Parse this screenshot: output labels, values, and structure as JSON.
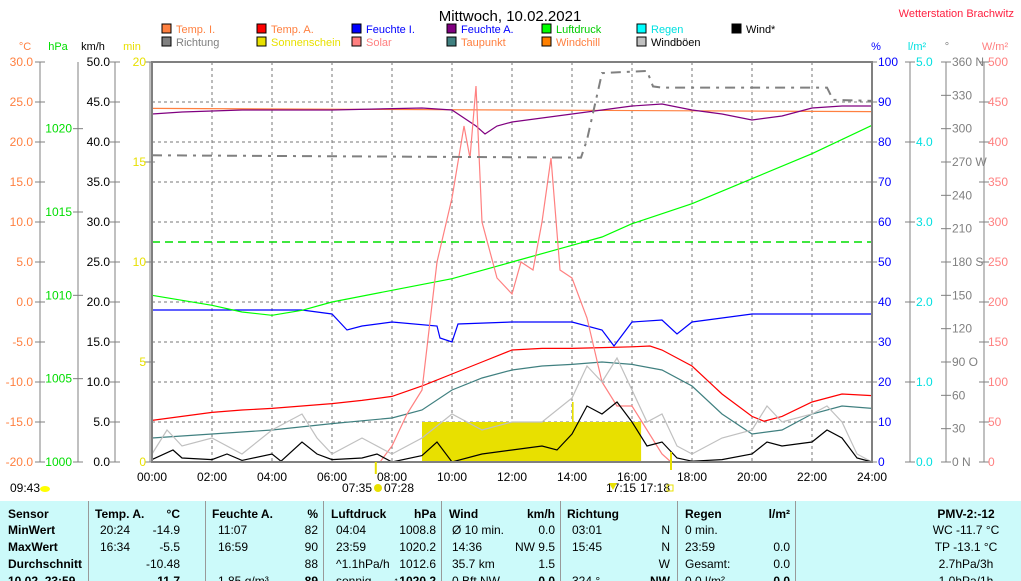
{
  "header": {
    "title": "Mittwoch, 10.02.2021",
    "station": "Wetterstation Brachwitz"
  },
  "legend": [
    {
      "label": "Temp. I.",
      "color": "#ff8040",
      "text_color": "#ff8040"
    },
    {
      "label": "Temp. A.",
      "color": "#ff0000",
      "text_color": "#ff8040"
    },
    {
      "label": "Feuchte I.",
      "color": "#0000ff",
      "text_color": "#0000ff"
    },
    {
      "label": "Feuchte A.",
      "color": "#800080",
      "text_color": "#0000ff"
    },
    {
      "label": "Luftdruck",
      "color": "#00ff00",
      "text_color": "#00cc00"
    },
    {
      "label": "Regen",
      "color": "#00ffff",
      "text_color": "#00e0e0"
    },
    {
      "label": "Wind*",
      "color": "#000000",
      "text_color": "#000000"
    },
    {
      "label": "Richtung",
      "color": "#808080",
      "text_color": "#808080"
    },
    {
      "label": "Sonnenschein",
      "color": "#e8e000",
      "text_color": "#e8e000"
    },
    {
      "label": "Solar",
      "color": "#ff8080",
      "text_color": "#ff8080"
    },
    {
      "label": "Taupunkt",
      "color": "#408080",
      "text_color": "#ff8040"
    },
    {
      "label": "Windchill",
      "color": "#ff8000",
      "text_color": "#ff8040"
    },
    {
      "label": "Windböen",
      "color": "#c0c0c0",
      "text_color": "#000000"
    }
  ],
  "chart_data": {
    "type": "line",
    "x_ticks": [
      "00:00",
      "02:00",
      "04:00",
      "06:00",
      "08:00",
      "10:00",
      "12:00",
      "14:00",
      "16:00",
      "18:00",
      "20:00",
      "22:00",
      "24:00"
    ],
    "xlim": [
      0,
      24
    ],
    "grid": true,
    "axes": {
      "temp": {
        "unit": "°C",
        "range": [
          -20,
          30
        ],
        "step": 5,
        "color": "#ff8040",
        "decimals": 1
      },
      "pressure": {
        "unit": "hPa",
        "range": [
          1000,
          1024
        ],
        "ticks": [
          1000,
          1005,
          1010,
          1015,
          1020
        ],
        "color": "#00dd00"
      },
      "wind": {
        "unit": "km/h",
        "range": [
          0,
          50
        ],
        "step": 5,
        "color": "#000000",
        "decimals": 1
      },
      "sun": {
        "unit": "min",
        "range": [
          0,
          20
        ],
        "step": 5,
        "color": "#e8e000"
      },
      "humidity": {
        "unit": "%",
        "range": [
          0,
          100
        ],
        "step": 10,
        "color": "#0000ff"
      },
      "rain": {
        "unit": "l/m²",
        "range": [
          0,
          5
        ],
        "step": 1,
        "color": "#00e0e0",
        "decimals": 1
      },
      "direction": {
        "unit": "°",
        "range": [
          0,
          360
        ],
        "step": 30,
        "color": "#808080",
        "compass": {
          "0": "N",
          "90": "O",
          "180": "S",
          "270": "W",
          "360": "N"
        }
      },
      "solar": {
        "unit": "W/m²",
        "range": [
          0,
          500
        ],
        "step": 50,
        "color": "#ff8080"
      }
    },
    "series": [
      {
        "name": "Temp. I.",
        "axis": "temp",
        "color": "#ff8040",
        "points": [
          [
            0,
            24.2
          ],
          [
            6,
            24.1
          ],
          [
            12,
            24.0
          ],
          [
            18,
            23.9
          ],
          [
            24,
            23.8
          ]
        ]
      },
      {
        "name": "Temp. A.",
        "axis": "temp",
        "color": "#ff0000",
        "points": [
          [
            0,
            -14.8
          ],
          [
            1,
            -14.3
          ],
          [
            2,
            -13.8
          ],
          [
            3,
            -13.5
          ],
          [
            4,
            -13.3
          ],
          [
            5,
            -13.0
          ],
          [
            6,
            -12.7
          ],
          [
            7,
            -12.3
          ],
          [
            8,
            -11.8
          ],
          [
            9,
            -10.5
          ],
          [
            10,
            -9.0
          ],
          [
            11,
            -7.5
          ],
          [
            12,
            -6.0
          ],
          [
            13,
            -5.8
          ],
          [
            14,
            -5.8
          ],
          [
            15,
            -5.7
          ],
          [
            16,
            -5.6
          ],
          [
            16.6,
            -5.5
          ],
          [
            17,
            -6.0
          ],
          [
            18,
            -8.0
          ],
          [
            19,
            -11.5
          ],
          [
            20,
            -14.3
          ],
          [
            20.4,
            -14.9
          ],
          [
            21,
            -14.3
          ],
          [
            22,
            -12.5
          ],
          [
            23,
            -11.5
          ],
          [
            24,
            -11.7
          ]
        ]
      },
      {
        "name": "Taupunkt",
        "axis": "temp",
        "color": "#408080",
        "points": [
          [
            0,
            -17
          ],
          [
            2,
            -16.5
          ],
          [
            4,
            -16
          ],
          [
            6,
            -15.2
          ],
          [
            8,
            -14.5
          ],
          [
            9,
            -13.5
          ],
          [
            10,
            -11
          ],
          [
            11,
            -9.5
          ],
          [
            12,
            -8.5
          ],
          [
            13,
            -8
          ],
          [
            14,
            -7.8
          ],
          [
            15,
            -7.5
          ],
          [
            16,
            -7.8
          ],
          [
            17,
            -8.5
          ],
          [
            18,
            -10.5
          ],
          [
            19,
            -14
          ],
          [
            20,
            -16.5
          ],
          [
            21,
            -16
          ],
          [
            22,
            -14
          ],
          [
            23,
            -13
          ],
          [
            24,
            -13.3
          ]
        ]
      },
      {
        "name": "Feuchte A.",
        "axis": "humidity",
        "color": "#800080",
        "points": [
          [
            0,
            87
          ],
          [
            1,
            87.5
          ],
          [
            3,
            88
          ],
          [
            6,
            88
          ],
          [
            9,
            88.5
          ],
          [
            10,
            88
          ],
          [
            10.8,
            84
          ],
          [
            11.1,
            82
          ],
          [
            11.5,
            84
          ],
          [
            12,
            85
          ],
          [
            13,
            86
          ],
          [
            14,
            87
          ],
          [
            15,
            88
          ],
          [
            16,
            89
          ],
          [
            17,
            89.5
          ],
          [
            18,
            88
          ],
          [
            19,
            87
          ],
          [
            20,
            85.5
          ],
          [
            21,
            86.5
          ],
          [
            22,
            88.5
          ],
          [
            23,
            89
          ],
          [
            24,
            89
          ]
        ]
      },
      {
        "name": "Feuchte I.",
        "axis": "humidity",
        "color": "#0000ff",
        "points": [
          [
            0,
            38
          ],
          [
            5,
            38
          ],
          [
            6,
            37
          ],
          [
            6.5,
            33
          ],
          [
            7,
            34
          ],
          [
            8,
            35
          ],
          [
            9.5,
            34
          ],
          [
            9.6,
            31
          ],
          [
            10,
            30
          ],
          [
            10.2,
            34.5
          ],
          [
            12,
            35
          ],
          [
            14,
            35
          ],
          [
            15,
            33
          ],
          [
            15.4,
            29
          ],
          [
            16,
            35
          ],
          [
            17,
            35.5
          ],
          [
            17.5,
            32
          ],
          [
            18,
            35
          ],
          [
            19,
            36
          ],
          [
            20,
            37
          ],
          [
            24,
            37
          ]
        ]
      },
      {
        "name": "Luftdruck",
        "axis": "pressure",
        "color": "#00ff00",
        "points": [
          [
            0,
            1010
          ],
          [
            2,
            1009.4
          ],
          [
            3,
            1009
          ],
          [
            4,
            1008.8
          ],
          [
            5,
            1009.1
          ],
          [
            6,
            1009.6
          ],
          [
            8,
            1010.3
          ],
          [
            10,
            1011
          ],
          [
            12,
            1012
          ],
          [
            14,
            1013
          ],
          [
            15,
            1013.5
          ],
          [
            16,
            1014.3
          ],
          [
            18,
            1015.5
          ],
          [
            20,
            1017
          ],
          [
            22,
            1018.5
          ],
          [
            24,
            1020.2
          ]
        ]
      },
      {
        "name": "Solar",
        "axis": "solar",
        "color": "#ff8080",
        "points": [
          [
            0,
            0
          ],
          [
            7.6,
            0
          ],
          [
            8,
            20
          ],
          [
            8.5,
            60
          ],
          [
            9,
            90
          ],
          [
            9.5,
            250
          ],
          [
            10,
            330
          ],
          [
            10.4,
            420
          ],
          [
            10.6,
            380
          ],
          [
            10.8,
            470
          ],
          [
            11,
            300
          ],
          [
            11.5,
            230
          ],
          [
            12,
            210
          ],
          [
            12.3,
            250
          ],
          [
            12.7,
            240
          ],
          [
            13,
            300
          ],
          [
            13.3,
            380
          ],
          [
            13.6,
            240
          ],
          [
            14,
            230
          ],
          [
            14.5,
            180
          ],
          [
            15,
            100
          ],
          [
            15.5,
            70
          ],
          [
            16,
            70
          ],
          [
            16.5,
            40
          ],
          [
            17,
            10
          ],
          [
            17.3,
            0
          ],
          [
            24,
            0
          ]
        ]
      },
      {
        "name": "Windböen",
        "axis": "wind",
        "color": "#c0c0c0",
        "points": [
          [
            0,
            1
          ],
          [
            0.5,
            4
          ],
          [
            1,
            2
          ],
          [
            2,
            3
          ],
          [
            3,
            1
          ],
          [
            4,
            4
          ],
          [
            5,
            6
          ],
          [
            5.5,
            3
          ],
          [
            6,
            1
          ],
          [
            7,
            3
          ],
          [
            8,
            1
          ],
          [
            9,
            3
          ],
          [
            10,
            6
          ],
          [
            11,
            4
          ],
          [
            12,
            5
          ],
          [
            13,
            5
          ],
          [
            14,
            8
          ],
          [
            14.5,
            12
          ],
          [
            15,
            10
          ],
          [
            15.5,
            13
          ],
          [
            16,
            9
          ],
          [
            16.5,
            5
          ],
          [
            17,
            6
          ],
          [
            17.5,
            2
          ],
          [
            18,
            1
          ],
          [
            19,
            3
          ],
          [
            20,
            4
          ],
          [
            20.5,
            7
          ],
          [
            21,
            5
          ],
          [
            22,
            6
          ],
          [
            22.5,
            7
          ],
          [
            23,
            5
          ],
          [
            23.5,
            1
          ],
          [
            24,
            0
          ]
        ]
      },
      {
        "name": "Wind*",
        "axis": "wind",
        "color": "#000000",
        "points": [
          [
            0,
            0.3
          ],
          [
            0.7,
            1.5
          ],
          [
            1,
            0.5
          ],
          [
            2,
            0.3
          ],
          [
            2.5,
            1
          ],
          [
            3,
            0.2
          ],
          [
            4,
            1
          ],
          [
            4.3,
            0.1
          ],
          [
            5,
            2.5
          ],
          [
            5.5,
            1
          ],
          [
            6,
            0.3
          ],
          [
            7,
            0.5
          ],
          [
            7.5,
            1
          ],
          [
            8,
            0
          ],
          [
            9,
            0.8
          ],
          [
            9.5,
            2.5
          ],
          [
            10,
            0
          ],
          [
            11,
            1
          ],
          [
            12,
            1.5
          ],
          [
            13,
            2
          ],
          [
            13.5,
            1.5
          ],
          [
            14,
            3.5
          ],
          [
            14.5,
            7
          ],
          [
            15,
            6
          ],
          [
            15.5,
            7.5
          ],
          [
            16,
            5
          ],
          [
            16.5,
            2
          ],
          [
            17,
            2.5
          ],
          [
            17.5,
            0.5
          ],
          [
            18,
            0.1
          ],
          [
            19,
            0.3
          ],
          [
            20,
            1
          ],
          [
            20.5,
            2.5
          ],
          [
            21,
            2
          ],
          [
            22,
            2.5
          ],
          [
            22.5,
            4
          ],
          [
            23,
            3
          ],
          [
            23.5,
            0.5
          ],
          [
            24,
            0
          ]
        ]
      },
      {
        "name": "Richtung",
        "axis": "direction",
        "color": "#808080",
        "dashed": true,
        "points": [
          [
            0,
            276
          ],
          [
            14.3,
            274
          ],
          [
            14.5,
            290
          ],
          [
            15,
            350
          ],
          [
            16.5,
            352
          ],
          [
            16.7,
            338
          ],
          [
            17,
            337
          ],
          [
            22.5,
            337
          ],
          [
            22.7,
            326
          ],
          [
            24,
            325
          ]
        ]
      }
    ],
    "reference_lines": [
      {
        "axis": "pressure",
        "value": 1013.2,
        "color": "#00dd00"
      }
    ],
    "sunshine": {
      "axis": "sun",
      "color": "#e8e000",
      "start": 9.0,
      "end": 16.3,
      "value": 2,
      "peak": {
        "x": 14.0,
        "value": 3
      }
    },
    "sun_events": {
      "sunrise_icon_time": "07:35",
      "sunrise": "07:28",
      "sunset_icon_time": "17:15",
      "sunset": "17:18",
      "left_time": "09:43"
    }
  },
  "table": {
    "headers": [
      "Sensor",
      "Temp. A.",
      "°C",
      "Feuchte A.",
      "%",
      "Luftdruck",
      "hPa",
      "Wind",
      "km/h",
      "Richtung",
      "Regen",
      "l/m²",
      "PMV-2:-12"
    ],
    "rows": [
      [
        "MinWert",
        "20:24",
        "-14.9",
        "11:07",
        "82",
        "04:04",
        "1008.8",
        "Ø 10 min.",
        "0.0",
        "03:01",
        "N",
        "0 min.",
        "",
        "WC -11.7 °C"
      ],
      [
        "MaxWert",
        "16:34",
        "-5.5",
        "16:59",
        "90",
        "23:59",
        "1020.2",
        "14:36",
        "NW 9.5",
        "15:45",
        "N",
        "23:59",
        "0.0",
        "TP -13.1 °C"
      ],
      [
        "Durchschnitt",
        "",
        "-10.48",
        "",
        "88",
        "^1.1hPa/h",
        "1012.6",
        "35.7 km",
        "1.5",
        "",
        "W",
        "Gesamt:",
        "0.0",
        "2.7hPa/3h"
      ],
      [
        "10.02. 23:59",
        "",
        "-11.7",
        "1.85 g/m³",
        "89",
        "sonnig",
        "↑1020.2",
        "0 Bft NW",
        "0.0",
        "324 °",
        "NW",
        "0.0 l/m²",
        "0.0",
        "1.0hPa/1h"
      ]
    ]
  }
}
